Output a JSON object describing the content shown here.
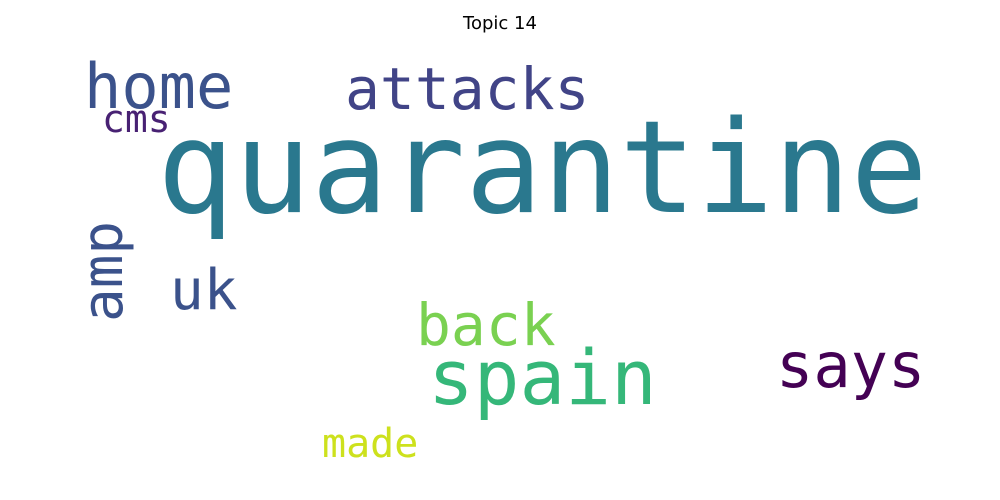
{
  "title": "Topic 14",
  "words": [
    {
      "text": "quarantine",
      "color": "#2a788e",
      "rank": 1
    },
    {
      "text": "spain",
      "color": "#35b779",
      "rank": 2
    },
    {
      "text": "attacks",
      "color": "#414487",
      "rank": 3
    },
    {
      "text": "home",
      "color": "#3b528b",
      "rank": 4
    },
    {
      "text": "says",
      "color": "#440154",
      "rank": 5
    },
    {
      "text": "amp",
      "color": "#3b528b",
      "rank": 6
    },
    {
      "text": "uk",
      "color": "#3b528b",
      "rank": 7
    },
    {
      "text": "back",
      "color": "#7ad151",
      "rank": 8
    },
    {
      "text": "made",
      "color": "#cde11d",
      "rank": 9
    },
    {
      "text": "cms",
      "color": "#482173",
      "rank": 10
    }
  ]
}
